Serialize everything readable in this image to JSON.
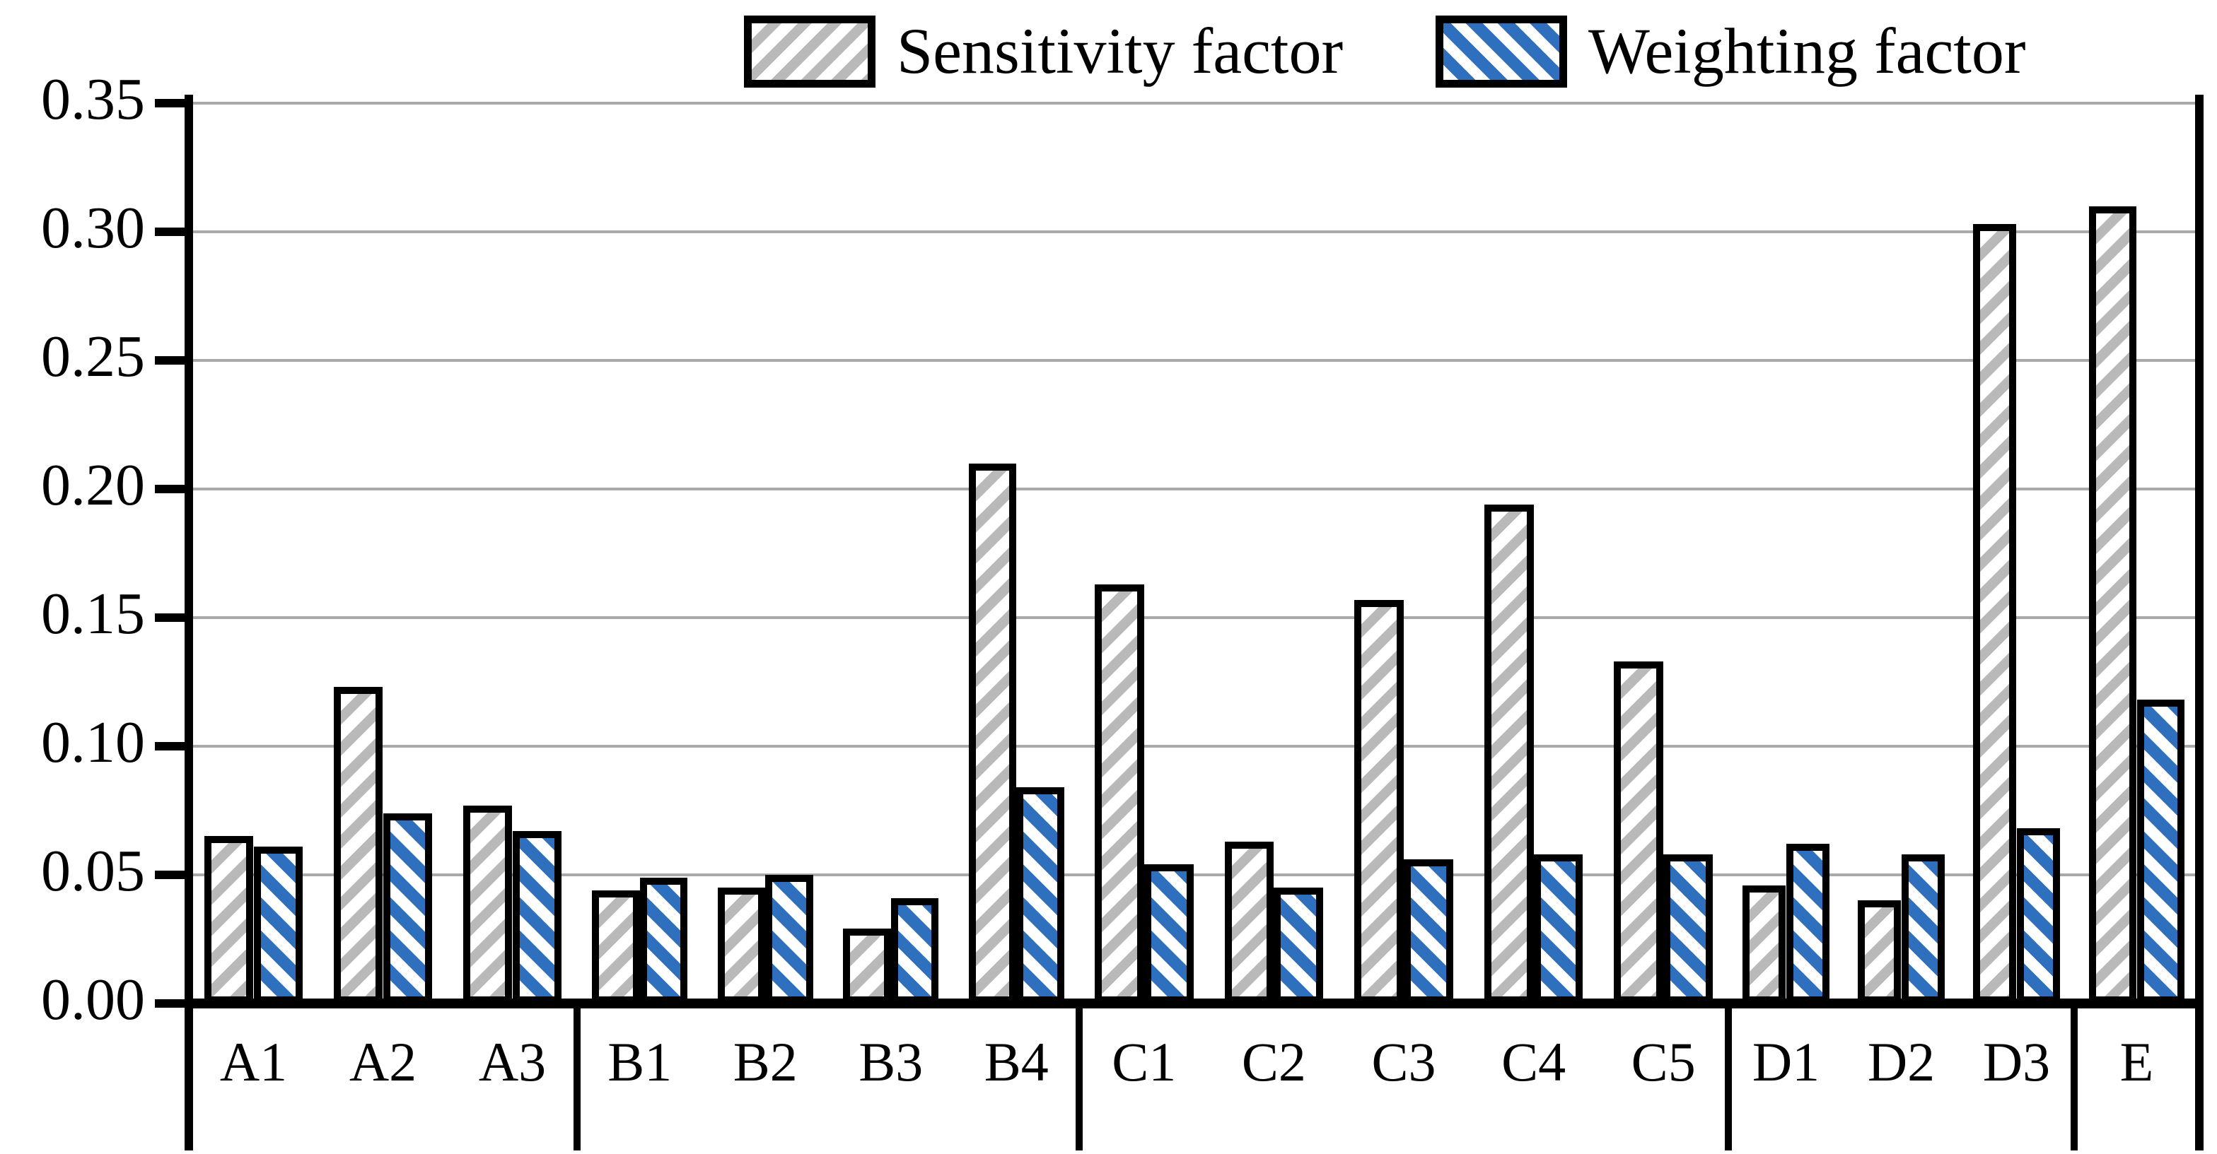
{
  "legend": {
    "items": [
      {
        "label": "Sensitivity factor"
      },
      {
        "label": "Weighting factor"
      }
    ]
  },
  "colors": {
    "sensitivity_hatch": "#b9b9b9",
    "weighting_hatch": "#2e6fbe",
    "axis": "#000000",
    "gridline": "#a9a9a9",
    "background": "#ffffff"
  },
  "chart_data": {
    "type": "bar",
    "title": "",
    "xlabel": "",
    "ylabel": "",
    "categories": [
      "A1",
      "A2",
      "A3",
      "B1",
      "B2",
      "B3",
      "B4",
      "C1",
      "C2",
      "C3",
      "C4",
      "C5",
      "D1",
      "D2",
      "D3",
      "E"
    ],
    "groups": [
      [
        "A1",
        "A2",
        "A3"
      ],
      [
        "B1",
        "B2",
        "B3",
        "B4"
      ],
      [
        "C1",
        "C2",
        "C3",
        "C4",
        "C5"
      ],
      [
        "D1",
        "D2",
        "D3"
      ],
      [
        "E"
      ]
    ],
    "series": [
      {
        "name": "Sensitivity factor",
        "hatch": "/",
        "color": "#b9b9b9",
        "values": [
          0.065,
          0.123,
          0.077,
          0.044,
          0.045,
          0.029,
          0.21,
          0.163,
          0.063,
          0.157,
          0.194,
          0.133,
          0.046,
          0.04,
          0.303,
          0.31
        ]
      },
      {
        "name": "Weighting factor",
        "hatch": "\\",
        "color": "#2e6fbe",
        "values": [
          0.061,
          0.074,
          0.067,
          0.049,
          0.05,
          0.041,
          0.084,
          0.054,
          0.045,
          0.056,
          0.058,
          0.058,
          0.062,
          0.058,
          0.068,
          0.118
        ]
      }
    ],
    "ylim": [
      0.0,
      0.35
    ],
    "ytick_step": 0.05,
    "ytick_labels": [
      "0.00",
      "0.05",
      "0.10",
      "0.15",
      "0.20",
      "0.25",
      "0.30",
      "0.35"
    ],
    "grid": "horizontal",
    "legend_position": "top-center"
  }
}
